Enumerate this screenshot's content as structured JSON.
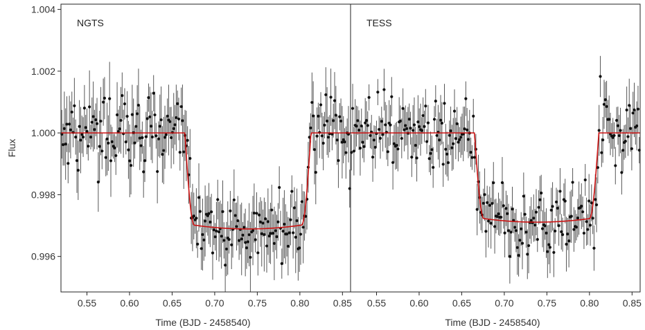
{
  "chart_data": {
    "type": "scatter",
    "ylabel": "Flux",
    "y_ticks": [
      "0.996",
      "0.998",
      "1.000",
      "1.002",
      "1.004"
    ],
    "y_tick_values": [
      0.996,
      0.998,
      1.0,
      1.002,
      1.004
    ],
    "ylim": [
      0.99485,
      1.00417
    ],
    "model_color": "#cc1111",
    "data_color": "#111111",
    "errorbar_color": "#555555",
    "panels": [
      {
        "label": "NGTS",
        "xlabel": "Time (BJD - 2458540)",
        "x_ticks": [
          "0.55",
          "0.60",
          "0.65",
          "0.70",
          "0.75",
          "0.80",
          "0.85"
        ],
        "x_tick_values": [
          0.55,
          0.6,
          0.65,
          0.7,
          0.75,
          0.8,
          0.85
        ],
        "xlim": [
          0.5195,
          0.8595
        ],
        "model": {
          "name": "transit model",
          "out_of_transit": 1.0,
          "depth": 0.00311,
          "ingress_start": 0.665,
          "ingress_end": 0.676,
          "egress_start": 0.802,
          "egress_end": 0.813
        },
        "data_summary": {
          "n_points": 230,
          "scatter": 0.0006,
          "error_min": 0.0004,
          "error_max": 0.0012
        }
      },
      {
        "label": "TESS",
        "xlabel": "Time (BJD - 2458540)",
        "x_ticks": [
          "0.55",
          "0.60",
          "0.65",
          "0.70",
          "0.75",
          "0.80",
          "0.85"
        ],
        "x_tick_values": [
          0.55,
          0.6,
          0.65,
          0.7,
          0.75,
          0.8,
          0.85
        ],
        "xlim": [
          0.5195,
          0.8595
        ],
        "model": {
          "name": "transit model",
          "out_of_transit": 1.0,
          "depth": 0.00289,
          "ingress_start": 0.665,
          "ingress_end": 0.676,
          "egress_start": 0.8,
          "egress_end": 0.811
        },
        "data_summary": {
          "n_points": 230,
          "scatter": 0.00055,
          "error_min": 0.0004,
          "error_max": 0.0009
        }
      }
    ]
  }
}
